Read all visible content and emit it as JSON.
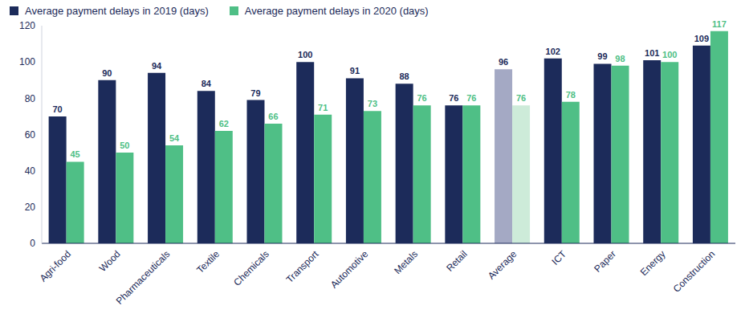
{
  "chart_data": {
    "type": "bar",
    "categories": [
      "Agri-food",
      "Wood",
      "Pharmaceuticals",
      "Textile",
      "Chemicals",
      "Transport",
      "Automotive",
      "Metals",
      "Retail",
      "Average",
      "ICT",
      "Paper",
      "Energy",
      "Construction"
    ],
    "series": [
      {
        "name": "Average payment delays in 2019 (days)",
        "color": "#1c2b5a",
        "colors": [
          "#1c2b5a",
          "#1c2b5a",
          "#1c2b5a",
          "#1c2b5a",
          "#1c2b5a",
          "#1c2b5a",
          "#1c2b5a",
          "#1c2b5a",
          "#1c2b5a",
          "#a4a9c4",
          "#1c2b5a",
          "#1c2b5a",
          "#1c2b5a",
          "#1c2b5a"
        ],
        "values": [
          70,
          90,
          94,
          84,
          79,
          100,
          91,
          88,
          76,
          96,
          102,
          99,
          101,
          109
        ]
      },
      {
        "name": "Average payment delays in 2020 (days)",
        "color": "#4fbf86",
        "colors": [
          "#4fbf86",
          "#4fbf86",
          "#4fbf86",
          "#4fbf86",
          "#4fbf86",
          "#4fbf86",
          "#4fbf86",
          "#4fbf86",
          "#4fbf86",
          "#cdebd9",
          "#4fbf86",
          "#4fbf86",
          "#4fbf86",
          "#4fbf86"
        ],
        "values": [
          45,
          50,
          54,
          62,
          66,
          71,
          73,
          76,
          76,
          76,
          78,
          98,
          100,
          117
        ]
      }
    ],
    "ylim": [
      0,
      120
    ],
    "yticks": [
      0,
      20,
      40,
      60,
      80,
      100,
      120
    ],
    "grid": false,
    "legend": "upper left",
    "data_labels": true
  }
}
